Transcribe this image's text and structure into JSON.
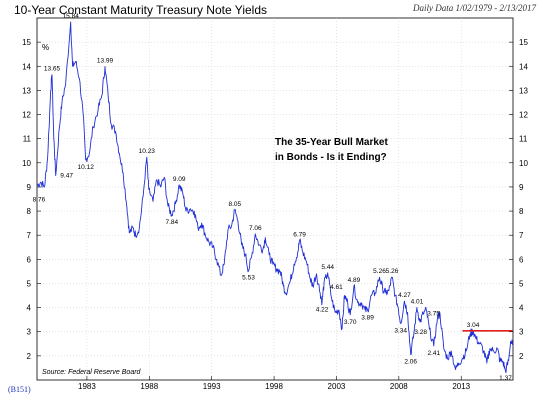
{
  "header": {
    "title": "10-Year Constant Maturity Treasury Note Yields",
    "date_range": "Daily Data 1/02/1979 - 2/13/2017",
    "code": "(B151)"
  },
  "chart_data": {
    "type": "line",
    "ylabel": "%",
    "ylim": [
      1.0,
      16.0
    ],
    "yticks": [
      2,
      3,
      4,
      5,
      6,
      7,
      8,
      9,
      10,
      11,
      12,
      13,
      14,
      15
    ],
    "xlim": [
      1979.0,
      2017.15
    ],
    "xticks": [
      1983,
      1988,
      1993,
      1998,
      2003,
      2008,
      2013
    ],
    "source": "Source: Federal Reserve Board",
    "annotation": [
      "The 35-Year Bull Market",
      "in Bonds - Is it Ending?"
    ],
    "reference_line": {
      "y": 3.04,
      "x_start": 2013.1,
      "x_end": 2017.1,
      "color": "#e02020"
    },
    "line_color": "#1f2fd6",
    "points": [
      [
        1979.0,
        9.05
      ],
      [
        1979.3,
        9.2
      ],
      [
        1979.6,
        9.0
      ],
      [
        1979.85,
        10.2
      ],
      [
        1980.1,
        13.0
      ],
      [
        1980.2,
        13.65
      ],
      [
        1980.35,
        11.0
      ],
      [
        1980.5,
        9.47
      ],
      [
        1980.8,
        11.5
      ],
      [
        1981.0,
        12.5
      ],
      [
        1981.3,
        13.3
      ],
      [
        1981.7,
        15.84
      ],
      [
        1981.85,
        14.0
      ],
      [
        1982.1,
        14.2
      ],
      [
        1982.4,
        13.5
      ],
      [
        1982.7,
        12.0
      ],
      [
        1982.9,
        10.12
      ],
      [
        1983.2,
        10.4
      ],
      [
        1983.5,
        11.5
      ],
      [
        1983.9,
        12.2
      ],
      [
        1984.2,
        12.8
      ],
      [
        1984.45,
        13.99
      ],
      [
        1984.7,
        12.8
      ],
      [
        1984.95,
        11.6
      ],
      [
        1985.3,
        11.3
      ],
      [
        1985.6,
        10.4
      ],
      [
        1985.9,
        9.6
      ],
      [
        1986.2,
        8.2
      ],
      [
        1986.4,
        7.1
      ],
      [
        1986.7,
        7.3
      ],
      [
        1986.9,
        7.0
      ],
      [
        1987.2,
        7.3
      ],
      [
        1987.5,
        8.6
      ],
      [
        1987.8,
        10.23
      ],
      [
        1987.95,
        8.9
      ],
      [
        1988.3,
        8.4
      ],
      [
        1988.6,
        9.3
      ],
      [
        1988.9,
        9.0
      ],
      [
        1989.2,
        9.4
      ],
      [
        1989.5,
        8.2
      ],
      [
        1989.8,
        7.84
      ],
      [
        1990.1,
        8.3
      ],
      [
        1990.4,
        9.09
      ],
      [
        1990.7,
        8.7
      ],
      [
        1990.95,
        8.0
      ],
      [
        1991.3,
        8.1
      ],
      [
        1991.6,
        8.0
      ],
      [
        1991.9,
        7.3
      ],
      [
        1992.2,
        7.5
      ],
      [
        1992.5,
        7.0
      ],
      [
        1992.8,
        6.7
      ],
      [
        1993.1,
        6.5
      ],
      [
        1993.4,
        6.0
      ],
      [
        1993.75,
        5.33
      ],
      [
        1994.0,
        5.8
      ],
      [
        1994.3,
        7.2
      ],
      [
        1994.6,
        7.4
      ],
      [
        1994.85,
        8.05
      ],
      [
        1995.1,
        7.6
      ],
      [
        1995.4,
        6.6
      ],
      [
        1995.7,
        6.2
      ],
      [
        1995.95,
        5.53
      ],
      [
        1996.2,
        6.1
      ],
      [
        1996.5,
        7.06
      ],
      [
        1996.8,
        6.6
      ],
      [
        1997.1,
        6.4
      ],
      [
        1997.3,
        6.9
      ],
      [
        1997.6,
        6.2
      ],
      [
        1997.9,
        5.8
      ],
      [
        1998.2,
        5.6
      ],
      [
        1998.5,
        5.5
      ],
      [
        1998.75,
        4.9
      ],
      [
        1998.95,
        4.6
      ],
      [
        1999.3,
        5.1
      ],
      [
        1999.6,
        5.8
      ],
      [
        1999.9,
        6.3
      ],
      [
        2000.05,
        6.79
      ],
      [
        2000.3,
        6.3
      ],
      [
        2000.6,
        5.9
      ],
      [
        2000.9,
        5.2
      ],
      [
        2001.1,
        4.9
      ],
      [
        2001.4,
        5.4
      ],
      [
        2001.7,
        4.6
      ],
      [
        2001.85,
        4.22
      ],
      [
        2002.0,
        5.0
      ],
      [
        2002.3,
        5.44
      ],
      [
        2002.6,
        4.4
      ],
      [
        2002.9,
        3.8
      ],
      [
        2003.2,
        3.9
      ],
      [
        2003.45,
        3.13
      ],
      [
        2003.65,
        4.5
      ],
      [
        2003.9,
        4.2
      ],
      [
        2004.1,
        3.7
      ],
      [
        2004.4,
        4.89
      ],
      [
        2004.7,
        4.2
      ],
      [
        2005.0,
        4.2
      ],
      [
        2005.3,
        3.9
      ],
      [
        2005.5,
        3.89
      ],
      [
        2005.8,
        4.5
      ],
      [
        2006.1,
        4.6
      ],
      [
        2006.45,
        5.26
      ],
      [
        2006.7,
        4.8
      ],
      [
        2006.95,
        4.6
      ],
      [
        2007.2,
        4.7
      ],
      [
        2007.45,
        5.26
      ],
      [
        2007.7,
        4.5
      ],
      [
        2007.95,
        4.0
      ],
      [
        2008.15,
        3.34
      ],
      [
        2008.45,
        4.27
      ],
      [
        2008.7,
        3.8
      ],
      [
        2008.95,
        2.06
      ],
      [
        2009.2,
        2.9
      ],
      [
        2009.45,
        4.01
      ],
      [
        2009.7,
        3.4
      ],
      [
        2009.95,
        3.75
      ],
      [
        2010.2,
        3.9
      ],
      [
        2010.45,
        3.1
      ],
      [
        2010.8,
        2.41
      ],
      [
        2011.1,
        3.6
      ],
      [
        2011.3,
        3.75
      ],
      [
        2011.6,
        2.3
      ],
      [
        2011.9,
        1.9
      ],
      [
        2012.2,
        2.2
      ],
      [
        2012.55,
        1.43
      ],
      [
        2012.8,
        1.7
      ],
      [
        2013.1,
        1.9
      ],
      [
        2013.4,
        2.2
      ],
      [
        2013.7,
        2.9
      ],
      [
        2013.95,
        3.04
      ],
      [
        2014.2,
        2.7
      ],
      [
        2014.5,
        2.5
      ],
      [
        2014.8,
        2.2
      ],
      [
        2015.05,
        1.7
      ],
      [
        2015.3,
        2.3
      ],
      [
        2015.6,
        2.2
      ],
      [
        2015.9,
        2.3
      ],
      [
        2016.1,
        1.8
      ],
      [
        2016.35,
        1.75
      ],
      [
        2016.55,
        1.37
      ],
      [
        2016.8,
        1.8
      ],
      [
        2016.95,
        2.6
      ],
      [
        2017.12,
        2.45
      ]
    ],
    "peak_labels": [
      {
        "x": 1979.15,
        "y": 8.76,
        "text": "8.76",
        "pos": "below"
      },
      {
        "x": 1980.2,
        "y": 13.65,
        "text": "13.65",
        "pos": "above"
      },
      {
        "x": 1980.55,
        "y": 9.47,
        "text": "9.47",
        "pos": "right"
      },
      {
        "x": 1981.7,
        "y": 15.84,
        "text": "15.84",
        "pos": "above"
      },
      {
        "x": 1982.9,
        "y": 10.12,
        "text": "10.12",
        "pos": "below"
      },
      {
        "x": 1984.45,
        "y": 13.99,
        "text": "13.99",
        "pos": "above"
      },
      {
        "x": 1987.8,
        "y": 10.23,
        "text": "10.23",
        "pos": "above"
      },
      {
        "x": 1989.8,
        "y": 7.84,
        "text": "7.84",
        "pos": "below"
      },
      {
        "x": 1990.4,
        "y": 9.09,
        "text": "9.09",
        "pos": "above"
      },
      {
        "x": 1994.85,
        "y": 8.05,
        "text": "8.05",
        "pos": "above"
      },
      {
        "x": 1995.95,
        "y": 5.53,
        "text": "5.53",
        "pos": "below"
      },
      {
        "x": 1996.5,
        "y": 7.06,
        "text": "7.06",
        "pos": "above"
      },
      {
        "x": 2000.05,
        "y": 6.79,
        "text": "6.79",
        "pos": "above"
      },
      {
        "x": 2001.85,
        "y": 4.22,
        "text": "4.22",
        "pos": "below"
      },
      {
        "x": 2002.3,
        "y": 5.44,
        "text": "5.44",
        "pos": "above"
      },
      {
        "x": 2003.0,
        "y": 4.61,
        "text": "4.61",
        "pos": "above"
      },
      {
        "x": 2004.1,
        "y": 3.7,
        "text": "3.70",
        "pos": "below"
      },
      {
        "x": 2004.4,
        "y": 4.89,
        "text": "4.89",
        "pos": "above"
      },
      {
        "x": 2005.5,
        "y": 3.89,
        "text": "3.89",
        "pos": "below"
      },
      {
        "x": 2006.45,
        "y": 5.26,
        "text": "5.26",
        "pos": "above"
      },
      {
        "x": 2007.45,
        "y": 5.26,
        "text": "5.26",
        "pos": "above"
      },
      {
        "x": 2008.15,
        "y": 3.34,
        "text": "3.34",
        "pos": "below"
      },
      {
        "x": 2008.45,
        "y": 4.27,
        "text": "4.27",
        "pos": "above"
      },
      {
        "x": 2008.95,
        "y": 2.06,
        "text": "2.06",
        "pos": "below"
      },
      {
        "x": 2009.45,
        "y": 4.01,
        "text": "4.01",
        "pos": "above"
      },
      {
        "x": 2009.75,
        "y": 3.28,
        "text": "3.28",
        "pos": "below"
      },
      {
        "x": 2009.95,
        "y": 3.75,
        "text": "3.75",
        "pos": "right"
      },
      {
        "x": 2010.8,
        "y": 2.41,
        "text": "2.41",
        "pos": "below"
      },
      {
        "x": 2013.95,
        "y": 3.04,
        "text": "3.04",
        "pos": "above"
      },
      {
        "x": 2016.55,
        "y": 1.37,
        "text": "1.37",
        "pos": "below"
      }
    ]
  }
}
